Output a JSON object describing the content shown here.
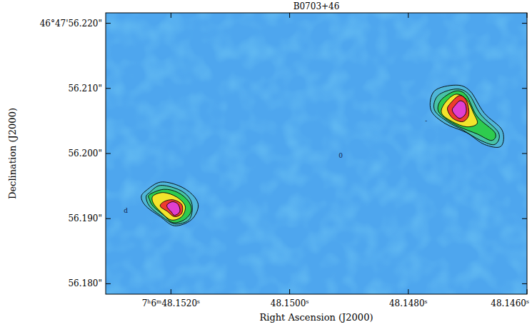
{
  "chart_data": {
    "type": "contour",
    "title": "B0703+46",
    "x_label": "Right Ascension (J2000)",
    "y_label": "Declination (J2000)",
    "xlim": [
      48.1531,
      48.146
    ],
    "ylim": [
      56.1784,
      56.2216
    ],
    "xticks": [
      {
        "value": 48.152,
        "label": "7ʰ6ᵐ48.1520ˢ"
      },
      {
        "value": 48.15,
        "label": "48.1500ˢ"
      },
      {
        "value": 48.148,
        "label": "48.1480ˢ"
      },
      {
        "value": 48.146,
        "label": "48.1460ˢ"
      }
    ],
    "yticks": [
      {
        "value": 56.22,
        "label": "46°47'56.220\""
      },
      {
        "value": 56.21,
        "label": "56.210\""
      },
      {
        "value": 56.2,
        "label": "56.200\""
      },
      {
        "value": 56.19,
        "label": "56.190\""
      },
      {
        "value": 56.18,
        "label": "56.180\""
      }
    ],
    "colors": [
      "#4fb6d8",
      "#47c2a6",
      "#2ecb4e",
      "#f3e42c",
      "#ee3b2e",
      "#e03fd0"
    ],
    "sources": [
      {
        "contours": [
          [
            [
              48.15242,
              56.1943
            ],
            [
              48.15218,
              56.1956
            ],
            [
              48.15188,
              56.1951
            ],
            [
              48.15164,
              56.1937
            ],
            [
              48.15154,
              56.1919
            ],
            [
              48.15166,
              56.1898
            ],
            [
              48.15194,
              56.1889
            ],
            [
              48.15218,
              56.1903
            ],
            [
              48.15242,
              56.1919
            ],
            [
              48.1525,
              56.1933
            ]
          ],
          [
            [
              48.15236,
              56.194
            ],
            [
              48.15218,
              56.1951
            ],
            [
              48.15188,
              56.1945
            ],
            [
              48.1517,
              56.1933
            ],
            [
              48.15164,
              56.1917
            ],
            [
              48.1517,
              56.1898
            ],
            [
              48.15194,
              56.1892
            ],
            [
              48.15218,
              56.1905
            ],
            [
              48.15236,
              56.1919
            ],
            [
              48.15242,
              56.1933
            ]
          ],
          [
            [
              48.15236,
              56.1937
            ],
            [
              48.15212,
              56.1945
            ],
            [
              48.15188,
              56.194
            ],
            [
              48.1517,
              56.1926
            ],
            [
              48.15166,
              56.1911
            ],
            [
              48.15178,
              56.1898
            ],
            [
              48.15197,
              56.1894
            ],
            [
              48.15212,
              56.1905
            ],
            [
              48.1523,
              56.1919
            ],
            [
              48.15236,
              56.1929
            ]
          ],
          [
            [
              48.1523,
              56.1935
            ],
            [
              48.15212,
              56.194
            ],
            [
              48.1519,
              56.1933
            ],
            [
              48.15176,
              56.1919
            ],
            [
              48.15182,
              56.1903
            ],
            [
              48.152,
              56.1898
            ],
            [
              48.15218,
              56.1911
            ],
            [
              48.1523,
              56.1924
            ]
          ],
          [
            [
              48.15212,
              56.1926
            ],
            [
              48.15197,
              56.1929
            ],
            [
              48.15182,
              56.1922
            ],
            [
              48.15182,
              56.1908
            ],
            [
              48.15194,
              56.1903
            ],
            [
              48.15206,
              56.1911
            ],
            [
              48.15218,
              56.1919
            ]
          ],
          [
            [
              48.15206,
              56.1922
            ],
            [
              48.15197,
              56.1926
            ],
            [
              48.15188,
              56.1922
            ],
            [
              48.15185,
              56.1911
            ],
            [
              48.15194,
              56.1905
            ],
            [
              48.152,
              56.1911
            ],
            [
              48.15206,
              56.1917
            ]
          ]
        ]
      },
      {
        "contours": [
          [
            [
              48.14756,
              56.2096
            ],
            [
              48.1472,
              56.2105
            ],
            [
              48.14696,
              56.2096
            ],
            [
              48.14672,
              56.2062
            ],
            [
              48.14642,
              56.2036
            ],
            [
              48.14644,
              56.2011
            ],
            [
              48.14672,
              56.2014
            ],
            [
              48.14702,
              56.2032
            ],
            [
              48.14738,
              56.2046
            ],
            [
              48.14762,
              56.2067
            ]
          ],
          [
            [
              48.1475,
              56.2089
            ],
            [
              48.1472,
              56.2099
            ],
            [
              48.14698,
              56.2091
            ],
            [
              48.14678,
              56.206
            ],
            [
              48.14648,
              56.2032
            ],
            [
              48.14654,
              56.2014
            ],
            [
              48.14678,
              56.202
            ],
            [
              48.14708,
              56.2036
            ],
            [
              48.14734,
              56.2049
            ],
            [
              48.14756,
              56.2067
            ]
          ],
          [
            [
              48.14744,
              56.2083
            ],
            [
              48.1472,
              56.2096
            ],
            [
              48.14702,
              56.2089
            ],
            [
              48.14684,
              56.2057
            ],
            [
              48.14654,
              56.2032
            ],
            [
              48.1466,
              56.202
            ],
            [
              48.14684,
              56.203
            ],
            [
              48.14714,
              56.2041
            ],
            [
              48.14738,
              56.2054
            ],
            [
              48.1475,
              56.2067
            ]
          ],
          [
            [
              48.14738,
              56.2078
            ],
            [
              48.1472,
              56.2091
            ],
            [
              48.14702,
              56.2083
            ],
            [
              48.1469,
              56.2062
            ],
            [
              48.14684,
              56.2046
            ],
            [
              48.14702,
              56.2041
            ],
            [
              48.14726,
              56.2049
            ],
            [
              48.14744,
              56.2062
            ]
          ],
          [
            [
              48.1473,
              56.2076
            ],
            [
              48.14714,
              56.2089
            ],
            [
              48.14702,
              56.2081
            ],
            [
              48.14698,
              56.206
            ],
            [
              48.14708,
              56.2049
            ],
            [
              48.14725,
              56.2054
            ],
            [
              48.14734,
              56.2067
            ]
          ],
          [
            [
              48.14722,
              56.2073
            ],
            [
              48.14713,
              56.2081
            ],
            [
              48.14704,
              56.2076
            ],
            [
              48.14703,
              56.2062
            ],
            [
              48.14713,
              56.2054
            ],
            [
              48.14722,
              56.206
            ],
            [
              48.14726,
              56.2067
            ]
          ]
        ]
      }
    ],
    "annotations": [
      {
        "text": "0",
        "x": 48.14914,
        "y": 56.19966
      },
      {
        "text": "d",
        "x": 48.15276,
        "y": 56.1912
      },
      {
        "text": "-",
        "x": 48.1477,
        "y": 56.205
      }
    ]
  }
}
